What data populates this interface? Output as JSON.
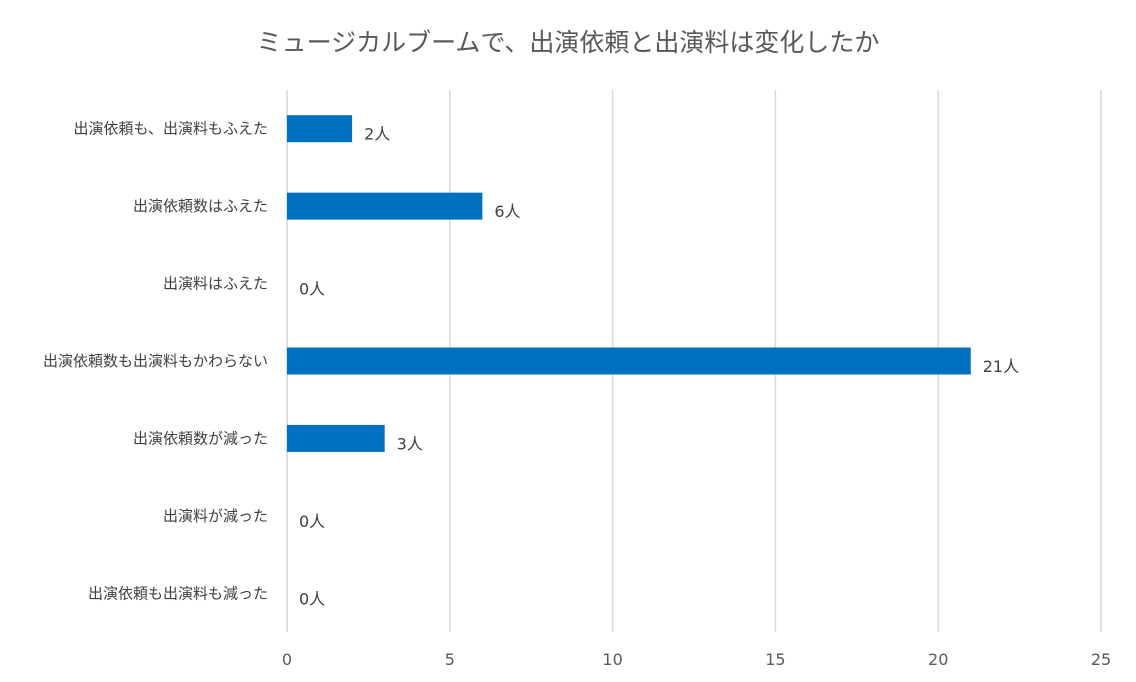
{
  "chart_data": {
    "type": "bar",
    "orientation": "horizontal",
    "title": "ミュージカルブームで、出演依頼と出演料は変化したか",
    "categories": [
      "出演依頼も、出演料もふえた",
      "出演依頼数はふえた",
      "出演料はふえた",
      "出演依頼数も出演料もかわらない",
      "出演依頼数が減った",
      "出演料が減った",
      "出演依頼も出演料も減った"
    ],
    "values": [
      2,
      6,
      0,
      21,
      3,
      0,
      0
    ],
    "data_labels": [
      "2人",
      "6人",
      "0人",
      "21人",
      "3人",
      "0人",
      "0人"
    ],
    "xlim": [
      0,
      25
    ],
    "x_ticks": [
      "0",
      "5",
      "10",
      "15",
      "20",
      "25"
    ],
    "xlabel": "",
    "ylabel": "",
    "grid": true,
    "legend": "none",
    "bar_color": "#0070c0"
  }
}
